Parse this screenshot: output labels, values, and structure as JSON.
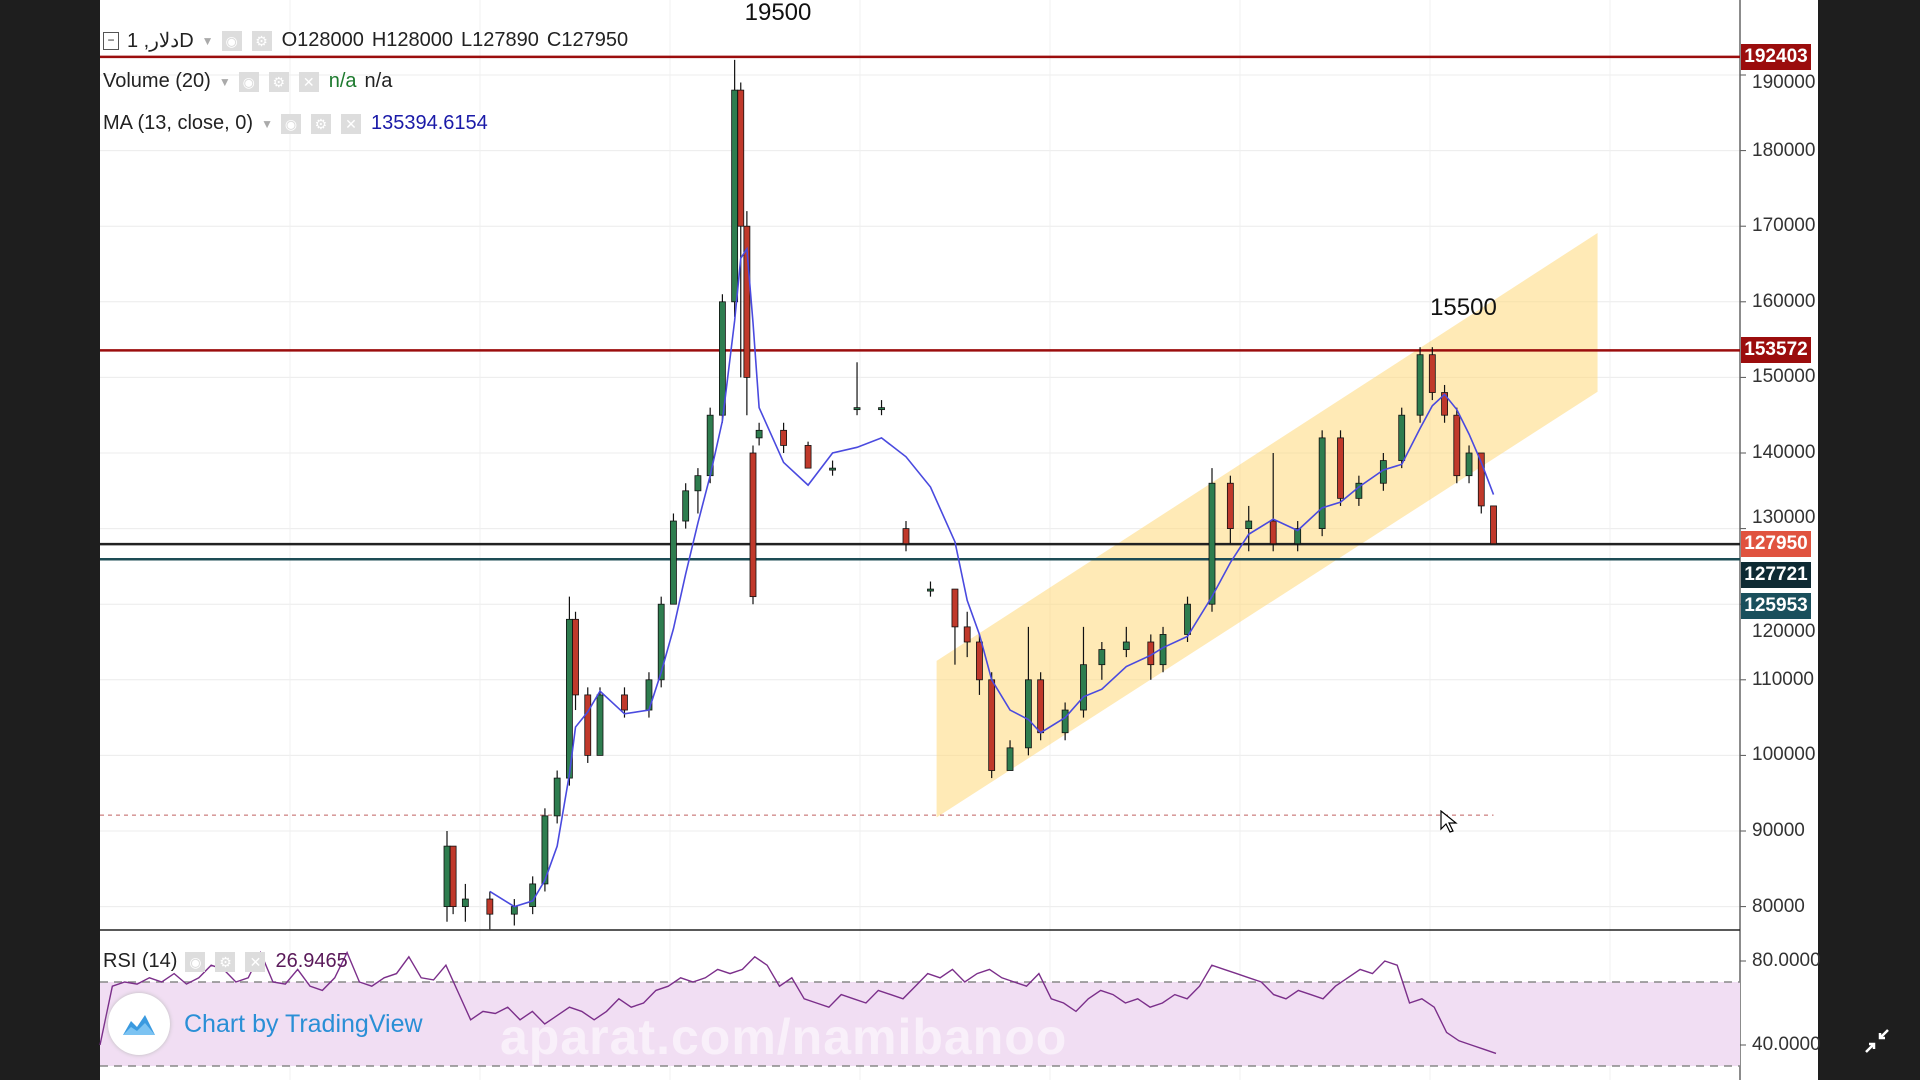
{
  "legend": {
    "symbol": "دلار, 1D",
    "open": "O128000",
    "high": "H128000",
    "low": "L127890",
    "close": "C127950",
    "volume_label": "Volume (20)",
    "volume_val1": "n/a",
    "volume_val2": "n/a",
    "ma_label": "MA (13, close, 0)",
    "ma_value": "135394.6154",
    "rsi_label": "RSI (14)",
    "rsi_value": "26.9465"
  },
  "annotations": [
    {
      "text": "19500",
      "t": 47,
      "price": 196500
    },
    {
      "text": "15500",
      "t": 159,
      "price": 157500
    }
  ],
  "branding": {
    "tv_text": "Chart by TradingView",
    "watermark": "aparat.com/namibanoo"
  },
  "colors": {
    "up": "#2e7d4f",
    "down": "#c0392b",
    "ma": "#4a4adf",
    "rsi": "#7b2f8a",
    "resistance": "#9b0d0d",
    "channel": "#ffd97a"
  },
  "chart_data": {
    "type": "candlestick",
    "ylim": [
      77000,
      198000
    ],
    "yticks": [
      190000,
      180000,
      170000,
      160000,
      150000,
      140000,
      130000,
      120000,
      110000,
      100000,
      90000,
      80000
    ],
    "candles": [
      [
        0,
        80000,
        90000,
        78000,
        88000
      ],
      [
        1,
        88000,
        88000,
        79000,
        80000
      ],
      [
        3,
        80000,
        83000,
        78000,
        81000
      ],
      [
        7,
        81000,
        82000,
        77000,
        79000
      ],
      [
        11,
        79000,
        81000,
        77500,
        80000
      ],
      [
        14,
        80000,
        84000,
        79000,
        83000
      ],
      [
        16,
        83000,
        93000,
        82000,
        92000
      ],
      [
        18,
        92000,
        98000,
        91000,
        97000
      ],
      [
        20,
        97000,
        121000,
        96000,
        118000
      ],
      [
        21,
        118000,
        119000,
        106000,
        108000
      ],
      [
        23,
        108000,
        109000,
        99000,
        100000
      ],
      [
        25,
        100000,
        109000,
        100000,
        108000
      ],
      [
        29,
        108000,
        109000,
        105000,
        106000
      ],
      [
        33,
        106000,
        111000,
        105000,
        110000
      ],
      [
        35,
        110000,
        121000,
        109000,
        120000
      ],
      [
        37,
        120000,
        132000,
        120000,
        131000
      ],
      [
        39,
        131000,
        136000,
        130000,
        135000
      ],
      [
        41,
        135000,
        138000,
        132000,
        137000
      ],
      [
        43,
        137000,
        146000,
        136000,
        145000
      ],
      [
        45,
        145000,
        161000,
        144000,
        160000
      ],
      [
        47,
        160000,
        192000,
        158000,
        188000
      ],
      [
        48,
        188000,
        189000,
        150000,
        170000
      ],
      [
        49,
        170000,
        172000,
        145000,
        150000
      ],
      [
        50,
        140000,
        141000,
        120000,
        121000
      ],
      [
        51,
        142000,
        144000,
        141000,
        143000
      ],
      [
        55,
        143000,
        144000,
        140000,
        141000
      ],
      [
        59,
        141000,
        141500,
        138000,
        138000
      ],
      [
        63,
        138000,
        139000,
        137000,
        138000
      ],
      [
        67,
        146000,
        152000,
        145000,
        146000
      ],
      [
        71,
        146000,
        147000,
        145000,
        146000
      ],
      [
        75,
        130000,
        131000,
        127000,
        128000
      ],
      [
        79,
        122000,
        123000,
        121000,
        122000
      ],
      [
        83,
        122000,
        122000,
        112000,
        117000
      ],
      [
        85,
        117000,
        119000,
        113000,
        115000
      ],
      [
        87,
        115000,
        116000,
        108000,
        110000
      ],
      [
        89,
        110000,
        111000,
        97000,
        98000
      ],
      [
        92,
        98000,
        102000,
        98000,
        101000
      ],
      [
        95,
        101000,
        117000,
        100000,
        110000
      ],
      [
        97,
        110000,
        111000,
        102000,
        103000
      ],
      [
        101,
        103000,
        107000,
        102000,
        106000
      ],
      [
        104,
        106000,
        117000,
        105000,
        112000
      ],
      [
        107,
        112000,
        115000,
        110000,
        114000
      ],
      [
        111,
        114000,
        117000,
        113000,
        115000
      ],
      [
        115,
        115000,
        116000,
        110000,
        112000
      ],
      [
        117,
        112000,
        117000,
        111000,
        116000
      ],
      [
        121,
        116000,
        121000,
        115000,
        120000
      ],
      [
        125,
        120000,
        138000,
        119000,
        136000
      ],
      [
        128,
        136000,
        137000,
        128000,
        130000
      ],
      [
        131,
        130000,
        133000,
        127000,
        131000
      ],
      [
        135,
        131000,
        140000,
        127000,
        128000
      ],
      [
        139,
        128000,
        131000,
        127000,
        130000
      ],
      [
        143,
        130000,
        143000,
        129000,
        142000
      ],
      [
        146,
        142000,
        143000,
        133000,
        134000
      ],
      [
        149,
        134000,
        137000,
        133000,
        136000
      ],
      [
        153,
        136000,
        140000,
        135000,
        139000
      ],
      [
        156,
        139000,
        146000,
        138000,
        145000
      ],
      [
        159,
        145000,
        154000,
        144000,
        153000
      ],
      [
        161,
        153000,
        154000,
        147000,
        148000
      ],
      [
        163,
        148000,
        149000,
        144000,
        145000
      ],
      [
        165,
        145000,
        146000,
        136000,
        137000
      ],
      [
        167,
        137000,
        141000,
        136000,
        140000
      ],
      [
        169,
        140000,
        140000,
        132000,
        133000
      ],
      [
        171,
        133000,
        133000,
        128000,
        128000
      ]
    ],
    "ma_period": 13,
    "hlines": [
      {
        "price": 192403,
        "label": "192403",
        "color": "#9b0d0d",
        "labelColor": "#9b0d0d"
      },
      {
        "price": 153572,
        "label": "153572",
        "color": "#9b0d0d",
        "labelColor": "#9b0d0d"
      },
      {
        "price": 127950,
        "label": "127950",
        "color": "#222222",
        "labelColor": "#e0533f"
      },
      {
        "price": 127721,
        "label": "127721",
        "color": null,
        "labelColor": "#0e2a33"
      },
      {
        "price": 125953,
        "label": "125953",
        "color": "#1d4c55",
        "labelColor": "#1a4f5c"
      }
    ],
    "dotted_line_price": 92100,
    "channel": {
      "t_start": 80,
      "t_end": 188,
      "upper": [
        112500,
        169100
      ],
      "lower": [
        91800,
        148100
      ]
    },
    "rsi": {
      "ylim": [
        30,
        90
      ],
      "overbought": 70,
      "oversold": 30,
      "yticks": [
        "80.0000",
        "40.0000"
      ],
      "ytick_values": [
        80,
        40
      ],
      "values": [
        40,
        68,
        70,
        69,
        72,
        70,
        74,
        69,
        72,
        78,
        76,
        70,
        72,
        84,
        70,
        69,
        76,
        68,
        66,
        72,
        84,
        70,
        68,
        72,
        74,
        82,
        72,
        71,
        78,
        65,
        52,
        56,
        55,
        58,
        52,
        56,
        50,
        54,
        58,
        56,
        52,
        56,
        62,
        58,
        60,
        66,
        68,
        72,
        70,
        72,
        76,
        74,
        76,
        82,
        78,
        68,
        72,
        62,
        60,
        58,
        64,
        62,
        60,
        66,
        64,
        62,
        68,
        74,
        72,
        76,
        70,
        74,
        76,
        72,
        70,
        68,
        74,
        62,
        60,
        56,
        62,
        66,
        64,
        60,
        62,
        58,
        60,
        64,
        62,
        68,
        78,
        76,
        74,
        72,
        70,
        64,
        62,
        66,
        64,
        62,
        68,
        72,
        76,
        74,
        80,
        78,
        60,
        62,
        58,
        46,
        42,
        40,
        38,
        36
      ]
    }
  }
}
